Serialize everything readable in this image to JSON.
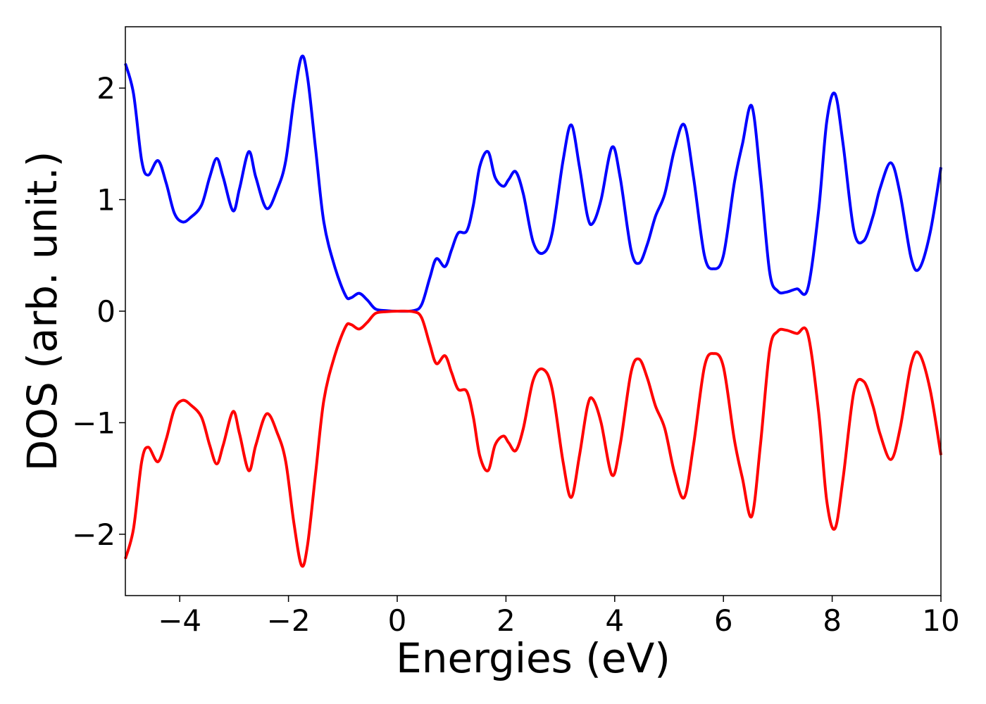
{
  "chart_data": {
    "type": "line",
    "title": "",
    "xlabel": "Energies (eV)",
    "ylabel": "DOS (arb. unit.)",
    "xlim": [
      -5,
      10
    ],
    "ylim": [
      -2.55,
      2.55
    ],
    "grid": false,
    "legend": "none",
    "xticks": [
      {
        "value": -4,
        "label": "−4"
      },
      {
        "value": -2,
        "label": "−2"
      },
      {
        "value": 0,
        "label": "0"
      },
      {
        "value": 2,
        "label": "2"
      },
      {
        "value": 4,
        "label": "4"
      },
      {
        "value": 6,
        "label": "6"
      },
      {
        "value": 8,
        "label": "8"
      },
      {
        "value": 10,
        "label": "10"
      }
    ],
    "yticks": [
      {
        "value": -2,
        "label": "−2"
      },
      {
        "value": -1,
        "label": "−1"
      },
      {
        "value": 0,
        "label": "0"
      },
      {
        "value": 1,
        "label": "1"
      },
      {
        "value": 2,
        "label": "2"
      }
    ],
    "series": [
      {
        "color": "#0000ff",
        "points": [
          [
            -5.0,
            2.22
          ],
          [
            -4.85,
            1.95
          ],
          [
            -4.7,
            1.35
          ],
          [
            -4.58,
            1.22
          ],
          [
            -4.4,
            1.35
          ],
          [
            -4.25,
            1.15
          ],
          [
            -4.1,
            0.88
          ],
          [
            -3.95,
            0.8
          ],
          [
            -3.8,
            0.84
          ],
          [
            -3.6,
            0.95
          ],
          [
            -3.45,
            1.2
          ],
          [
            -3.32,
            1.37
          ],
          [
            -3.2,
            1.2
          ],
          [
            -3.02,
            0.9
          ],
          [
            -2.9,
            1.1
          ],
          [
            -2.73,
            1.43
          ],
          [
            -2.6,
            1.2
          ],
          [
            -2.4,
            0.92
          ],
          [
            -2.2,
            1.1
          ],
          [
            -2.05,
            1.35
          ],
          [
            -1.9,
            1.9
          ],
          [
            -1.76,
            2.28
          ],
          [
            -1.65,
            2.1
          ],
          [
            -1.5,
            1.45
          ],
          [
            -1.35,
            0.8
          ],
          [
            -1.15,
            0.4
          ],
          [
            -0.95,
            0.14
          ],
          [
            -0.85,
            0.12
          ],
          [
            -0.7,
            0.16
          ],
          [
            -0.55,
            0.1
          ],
          [
            -0.4,
            0.02
          ],
          [
            -0.2,
            0.005
          ],
          [
            0.0,
            0.0
          ],
          [
            0.3,
            0.005
          ],
          [
            0.45,
            0.06
          ],
          [
            0.6,
            0.3
          ],
          [
            0.72,
            0.47
          ],
          [
            0.88,
            0.4
          ],
          [
            1.0,
            0.55
          ],
          [
            1.12,
            0.7
          ],
          [
            1.28,
            0.72
          ],
          [
            1.4,
            0.95
          ],
          [
            1.52,
            1.3
          ],
          [
            1.67,
            1.43
          ],
          [
            1.8,
            1.2
          ],
          [
            1.95,
            1.12
          ],
          [
            2.05,
            1.18
          ],
          [
            2.18,
            1.25
          ],
          [
            2.32,
            1.05
          ],
          [
            2.5,
            0.62
          ],
          [
            2.68,
            0.52
          ],
          [
            2.85,
            0.7
          ],
          [
            3.05,
            1.35
          ],
          [
            3.2,
            1.67
          ],
          [
            3.35,
            1.3
          ],
          [
            3.5,
            0.85
          ],
          [
            3.6,
            0.79
          ],
          [
            3.75,
            1.0
          ],
          [
            3.95,
            1.47
          ],
          [
            4.1,
            1.2
          ],
          [
            4.3,
            0.55
          ],
          [
            4.45,
            0.43
          ],
          [
            4.6,
            0.6
          ],
          [
            4.75,
            0.85
          ],
          [
            4.92,
            1.05
          ],
          [
            5.1,
            1.45
          ],
          [
            5.28,
            1.67
          ],
          [
            5.45,
            1.2
          ],
          [
            5.65,
            0.5
          ],
          [
            5.82,
            0.38
          ],
          [
            6.0,
            0.5
          ],
          [
            6.2,
            1.15
          ],
          [
            6.35,
            1.5
          ],
          [
            6.52,
            1.84
          ],
          [
            6.68,
            1.2
          ],
          [
            6.85,
            0.35
          ],
          [
            7.0,
            0.18
          ],
          [
            7.15,
            0.17
          ],
          [
            7.35,
            0.2
          ],
          [
            7.55,
            0.2
          ],
          [
            7.75,
            0.9
          ],
          [
            7.9,
            1.7
          ],
          [
            8.05,
            1.95
          ],
          [
            8.2,
            1.5
          ],
          [
            8.4,
            0.72
          ],
          [
            8.58,
            0.63
          ],
          [
            8.75,
            0.85
          ],
          [
            8.88,
            1.1
          ],
          [
            9.08,
            1.33
          ],
          [
            9.25,
            1.05
          ],
          [
            9.45,
            0.48
          ],
          [
            9.6,
            0.38
          ],
          [
            9.8,
            0.7
          ],
          [
            10.0,
            1.29
          ]
        ]
      },
      {
        "color": "#ff0000",
        "points": [
          [
            -5.0,
            -2.22
          ],
          [
            -4.85,
            -1.95
          ],
          [
            -4.7,
            -1.35
          ],
          [
            -4.58,
            -1.22
          ],
          [
            -4.4,
            -1.35
          ],
          [
            -4.25,
            -1.15
          ],
          [
            -4.1,
            -0.88
          ],
          [
            -3.95,
            -0.8
          ],
          [
            -3.8,
            -0.84
          ],
          [
            -3.6,
            -0.95
          ],
          [
            -3.45,
            -1.2
          ],
          [
            -3.32,
            -1.37
          ],
          [
            -3.2,
            -1.2
          ],
          [
            -3.02,
            -0.9
          ],
          [
            -2.9,
            -1.1
          ],
          [
            -2.73,
            -1.43
          ],
          [
            -2.6,
            -1.2
          ],
          [
            -2.4,
            -0.92
          ],
          [
            -2.2,
            -1.1
          ],
          [
            -2.05,
            -1.35
          ],
          [
            -1.9,
            -1.9
          ],
          [
            -1.76,
            -2.28
          ],
          [
            -1.65,
            -2.1
          ],
          [
            -1.5,
            -1.45
          ],
          [
            -1.35,
            -0.8
          ],
          [
            -1.15,
            -0.4
          ],
          [
            -0.95,
            -0.14
          ],
          [
            -0.85,
            -0.12
          ],
          [
            -0.7,
            -0.16
          ],
          [
            -0.55,
            -0.1
          ],
          [
            -0.4,
            -0.02
          ],
          [
            -0.2,
            -0.005
          ],
          [
            0.0,
            0.0
          ],
          [
            0.3,
            -0.005
          ],
          [
            0.45,
            -0.06
          ],
          [
            0.6,
            -0.3
          ],
          [
            0.72,
            -0.47
          ],
          [
            0.88,
            -0.4
          ],
          [
            1.0,
            -0.55
          ],
          [
            1.12,
            -0.7
          ],
          [
            1.28,
            -0.72
          ],
          [
            1.4,
            -0.95
          ],
          [
            1.52,
            -1.3
          ],
          [
            1.67,
            -1.43
          ],
          [
            1.8,
            -1.2
          ],
          [
            1.95,
            -1.12
          ],
          [
            2.05,
            -1.18
          ],
          [
            2.18,
            -1.25
          ],
          [
            2.32,
            -1.05
          ],
          [
            2.5,
            -0.62
          ],
          [
            2.68,
            -0.52
          ],
          [
            2.85,
            -0.7
          ],
          [
            3.05,
            -1.35
          ],
          [
            3.2,
            -1.67
          ],
          [
            3.35,
            -1.3
          ],
          [
            3.5,
            -0.85
          ],
          [
            3.6,
            -0.79
          ],
          [
            3.75,
            -1.0
          ],
          [
            3.95,
            -1.47
          ],
          [
            4.1,
            -1.2
          ],
          [
            4.3,
            -0.55
          ],
          [
            4.45,
            -0.43
          ],
          [
            4.6,
            -0.6
          ],
          [
            4.75,
            -0.85
          ],
          [
            4.92,
            -1.05
          ],
          [
            5.1,
            -1.45
          ],
          [
            5.28,
            -1.67
          ],
          [
            5.45,
            -1.2
          ],
          [
            5.65,
            -0.5
          ],
          [
            5.82,
            -0.38
          ],
          [
            6.0,
            -0.5
          ],
          [
            6.2,
            -1.15
          ],
          [
            6.35,
            -1.5
          ],
          [
            6.52,
            -1.84
          ],
          [
            6.68,
            -1.2
          ],
          [
            6.85,
            -0.35
          ],
          [
            7.0,
            -0.18
          ],
          [
            7.15,
            -0.17
          ],
          [
            7.35,
            -0.2
          ],
          [
            7.55,
            -0.2
          ],
          [
            7.75,
            -0.9
          ],
          [
            7.9,
            -1.7
          ],
          [
            8.05,
            -1.95
          ],
          [
            8.2,
            -1.5
          ],
          [
            8.4,
            -0.72
          ],
          [
            8.58,
            -0.63
          ],
          [
            8.75,
            -0.85
          ],
          [
            8.88,
            -1.1
          ],
          [
            9.08,
            -1.33
          ],
          [
            9.25,
            -1.05
          ],
          [
            9.45,
            -0.48
          ],
          [
            9.6,
            -0.38
          ],
          [
            9.8,
            -0.7
          ],
          [
            10.0,
            -1.29
          ]
        ]
      }
    ]
  }
}
